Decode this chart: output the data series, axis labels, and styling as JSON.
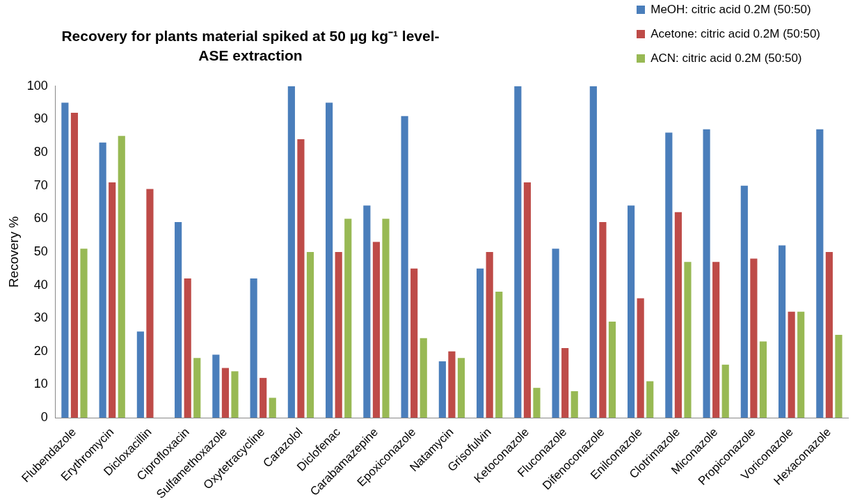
{
  "chart_data": {
    "type": "bar",
    "title": "Recovery for plants material spiked at 50 µg kg⁻¹ level-\nASE extraction",
    "ylabel": "Recovery %",
    "categories": [
      "Flubendazole",
      "Erythromycin",
      "Dicloxacillin",
      "Ciprofloxacin",
      "Sulfamethoxazole",
      "Oxytetracycline",
      "Carazolol",
      "Diclofenac",
      "Carabamazepine",
      "Epoxiconazole",
      "Natamycin",
      "Grisofulvin",
      "Ketoconazole",
      "Fluconazole",
      "Difenoconazole",
      "Enilconazole",
      "Clotrimazole",
      "Miconazole",
      "Propiconazole",
      "Voriconazole",
      "Hexaconazole"
    ],
    "series": [
      {
        "name": "MeOH: citric acid 0.2M (50:50)",
        "color": "#4a7ebb",
        "values": [
          95,
          83,
          26,
          59,
          19,
          42,
          100,
          95,
          64,
          91,
          17,
          45,
          100,
          51,
          100,
          64,
          86,
          87,
          70,
          52,
          87
        ]
      },
      {
        "name": "Acetone: citric acid 0.2M (50:50)",
        "color": "#be4b48",
        "values": [
          92,
          71,
          69,
          42,
          15,
          12,
          84,
          50,
          53,
          45,
          20,
          50,
          71,
          21,
          59,
          36,
          62,
          47,
          48,
          32,
          50
        ]
      },
      {
        "name": "ACN: citric acid 0.2M (50:50)",
        "color": "#98b954",
        "values": [
          51,
          85,
          0,
          18,
          14,
          6,
          50,
          60,
          60,
          24,
          18,
          38,
          9,
          8,
          29,
          11,
          47,
          16,
          23,
          32,
          25
        ]
      }
    ],
    "ylim": [
      0,
      100
    ],
    "yticks": [
      0,
      10,
      20,
      30,
      40,
      50,
      60,
      70,
      80,
      90,
      100
    ],
    "grid": false,
    "legend": "top right"
  }
}
